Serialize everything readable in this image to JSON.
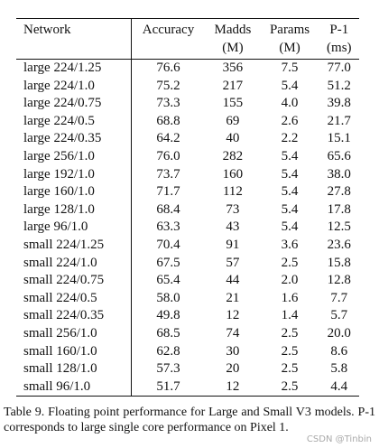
{
  "table": {
    "columns": [
      {
        "line1": "Network",
        "line2": ""
      },
      {
        "line1": "Accuracy",
        "line2": ""
      },
      {
        "line1": "Madds",
        "line2": "(M)"
      },
      {
        "line1": "Params",
        "line2": "(M)"
      },
      {
        "line1": "P-1",
        "line2": "(ms)"
      }
    ],
    "rows": [
      [
        "large 224/1.25",
        "76.6",
        "356",
        "7.5",
        "77.0"
      ],
      [
        "large 224/1.0",
        "75.2",
        "217",
        "5.4",
        "51.2"
      ],
      [
        "large 224/0.75",
        "73.3",
        "155",
        "4.0",
        "39.8"
      ],
      [
        "large 224/0.5",
        "68.8",
        "69",
        "2.6",
        "21.7"
      ],
      [
        "large 224/0.35",
        "64.2",
        "40",
        "2.2",
        "15.1"
      ],
      [
        "large 256/1.0",
        "76.0",
        "282",
        "5.4",
        "65.6"
      ],
      [
        "large 192/1.0",
        "73.7",
        "160",
        "5.4",
        "38.0"
      ],
      [
        "large 160/1.0",
        "71.7",
        "112",
        "5.4",
        "27.8"
      ],
      [
        "large 128/1.0",
        "68.4",
        "73",
        "5.4",
        "17.8"
      ],
      [
        "large 96/1.0",
        "63.3",
        "43",
        "5.4",
        "12.5"
      ],
      [
        "small 224/1.25",
        "70.4",
        "91",
        "3.6",
        "23.6"
      ],
      [
        "small 224/1.0",
        "67.5",
        "57",
        "2.5",
        "15.8"
      ],
      [
        "small 224/0.75",
        "65.4",
        "44",
        "2.0",
        "12.8"
      ],
      [
        "small 224/0.5",
        "58.0",
        "21",
        "1.6",
        "7.7"
      ],
      [
        "small 224/0.35",
        "49.8",
        "12",
        "1.4",
        "5.7"
      ],
      [
        "small 256/1.0",
        "68.5",
        "74",
        "2.5",
        "20.0"
      ],
      [
        "small 160/1.0",
        "62.8",
        "30",
        "2.5",
        "8.6"
      ],
      [
        "small 128/1.0",
        "57.3",
        "20",
        "2.5",
        "5.8"
      ],
      [
        "small 96/1.0",
        "51.7",
        "12",
        "2.5",
        "4.4"
      ]
    ]
  },
  "caption": "Table 9. Floating point performance for Large and Small V3 models. P-1 corresponds to large single core performance on Pixel 1.",
  "watermark": "CSDN @Tinbin"
}
